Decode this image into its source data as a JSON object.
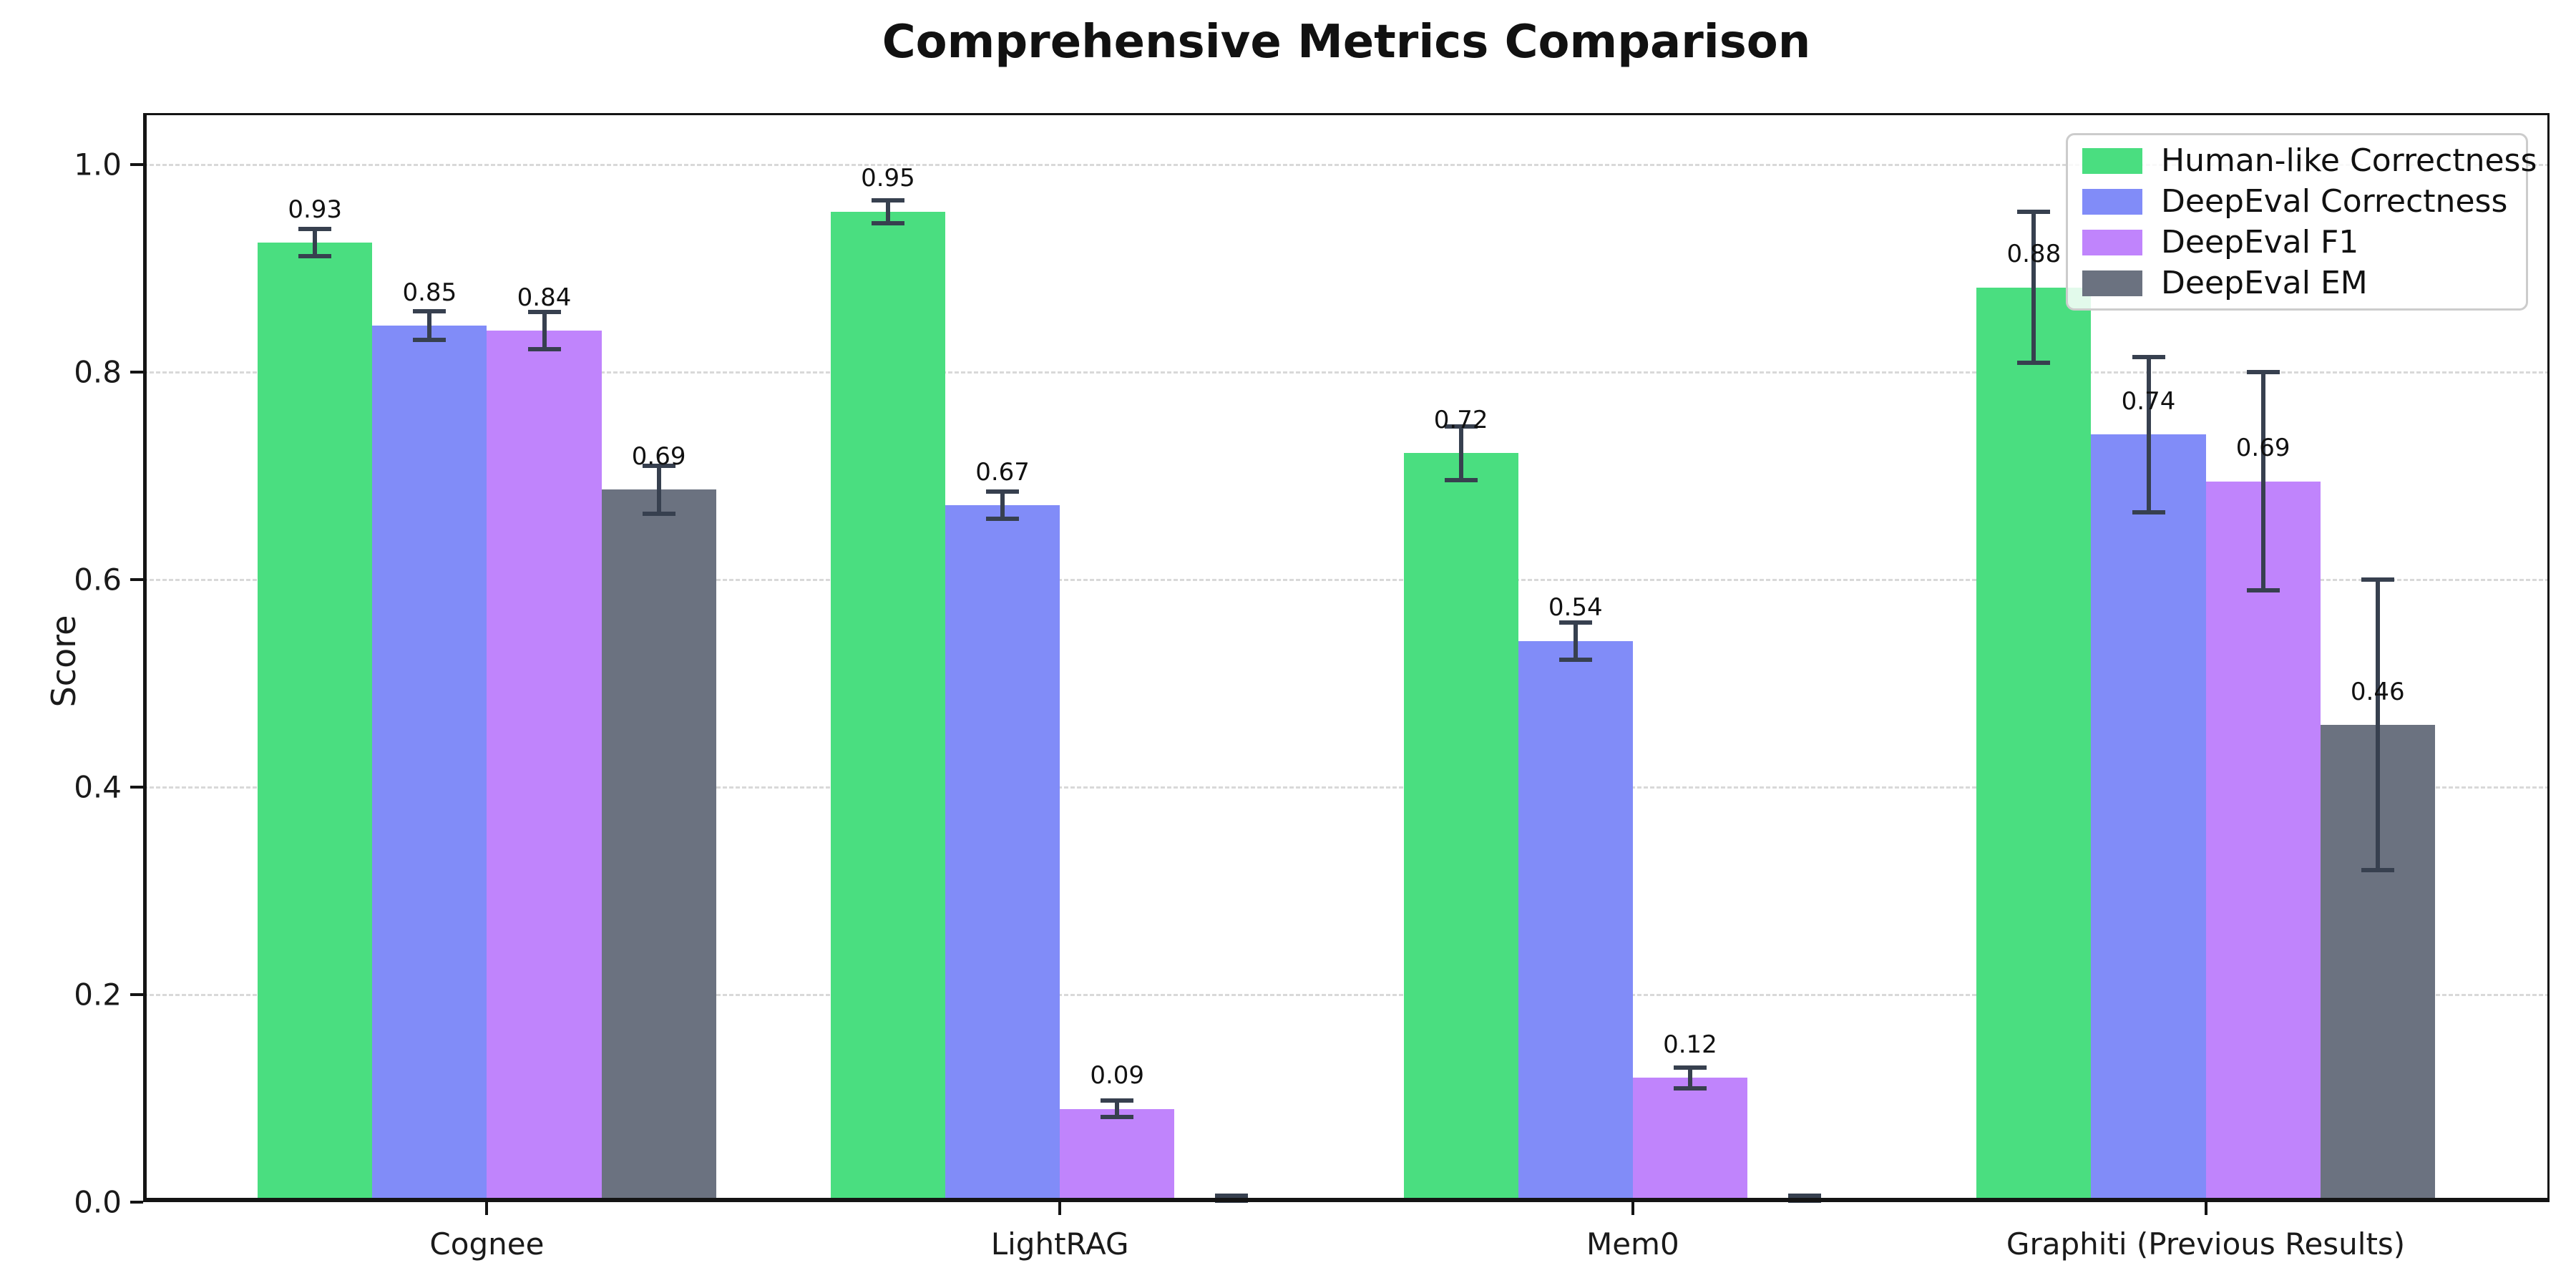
{
  "figure": {
    "title": "Comprehensive Metrics Comparison"
  },
  "chart_data": {
    "type": "bar",
    "title": "Comprehensive Metrics Comparison",
    "xlabel": "",
    "ylabel": "Score",
    "categories": [
      "Cognee",
      "LightRAG",
      "Mem0",
      "Graphiti (Previous Results)"
    ],
    "series": [
      {
        "name": "Human-like Correctness",
        "color": "#4ade80",
        "values": [
          0.925,
          0.955,
          0.722,
          0.882
        ],
        "labels": [
          "0.93",
          "0.95",
          "0.72",
          "0.88"
        ],
        "errors": [
          0.013,
          0.011,
          0.026,
          0.073
        ]
      },
      {
        "name": "DeepEval Correctness",
        "color": "#818cf8",
        "values": [
          0.845,
          0.672,
          0.541,
          0.74
        ],
        "labels": [
          "0.85",
          "0.67",
          "0.54",
          "0.74"
        ],
        "errors": [
          0.014,
          0.013,
          0.018,
          0.075
        ]
      },
      {
        "name": "DeepEval F1",
        "color": "#c084fc",
        "values": [
          0.84,
          0.09,
          0.12,
          0.695
        ],
        "labels": [
          "0.84",
          "0.09",
          "0.12",
          "0.69"
        ],
        "errors": [
          0.018,
          0.008,
          0.01,
          0.105
        ]
      },
      {
        "name": "DeepEval EM",
        "color": "#6b7280",
        "values": [
          0.687,
          0.002,
          0.002,
          0.46
        ],
        "labels": [
          "0.69",
          "",
          "",
          "0.46"
        ],
        "errors": [
          0.023,
          0.004,
          0.004,
          0.14
        ]
      }
    ],
    "yticks": [
      "0.0",
      "0.2",
      "0.4",
      "0.6",
      "0.8",
      "1.0"
    ],
    "ylim": [
      0,
      1.05
    ],
    "grid": "horizontal-dashed",
    "legend_position": "upper-right",
    "error_bar_color": "#37404f",
    "value_label_offset": 0.032
  }
}
